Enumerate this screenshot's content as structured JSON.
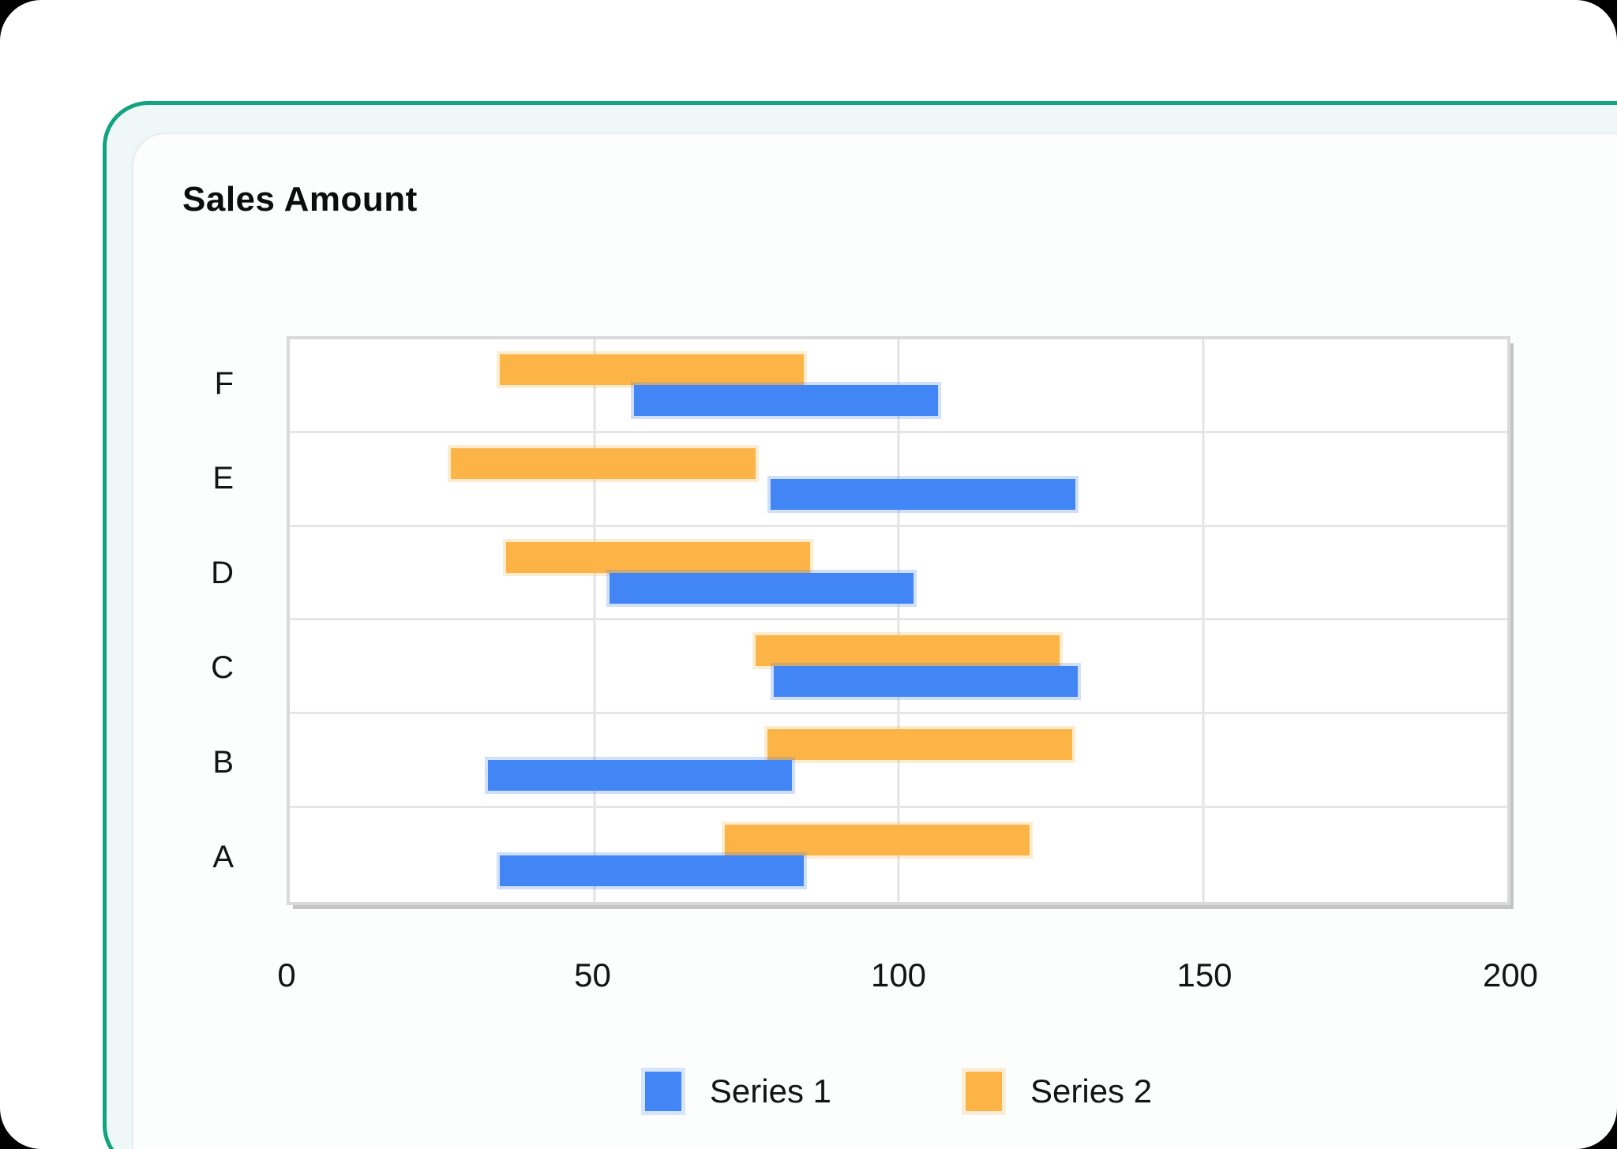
{
  "card": {
    "accent_border_color": "#12A381",
    "card_tint_color": "#EFF8F7",
    "inner_card_color": "#FCFDFD"
  },
  "chart_data": {
    "type": "bar",
    "subtype": "horizontal-floating-range-bars",
    "title": "Sales Amount",
    "categories": [
      "F",
      "E",
      "D",
      "C",
      "B",
      "A"
    ],
    "category_order": "top-to-bottom",
    "series": [
      {
        "name": "Series 1",
        "color": "#4285F4",
        "row_position": "lower",
        "ranges": [
          [
            56.5,
            106.5
          ],
          [
            79,
            129
          ],
          [
            52.5,
            102.5
          ],
          [
            79.5,
            129.5
          ],
          [
            32.5,
            82.5
          ],
          [
            34.5,
            84.5
          ]
        ]
      },
      {
        "name": "Series 2",
        "color": "#FBB445",
        "row_position": "upper",
        "ranges": [
          [
            34.5,
            84.5
          ],
          [
            26.5,
            76.5
          ],
          [
            35.5,
            85.5
          ],
          [
            76.5,
            126.5
          ],
          [
            78.5,
            128.5
          ],
          [
            71.5,
            121.5
          ]
        ]
      }
    ],
    "bar_length_each": 50,
    "xlabel": "",
    "ylabel": "",
    "xlim": [
      0,
      200
    ],
    "xticks": [
      0,
      50,
      100,
      150,
      200
    ],
    "grid": true,
    "legend_position": "bottom"
  }
}
